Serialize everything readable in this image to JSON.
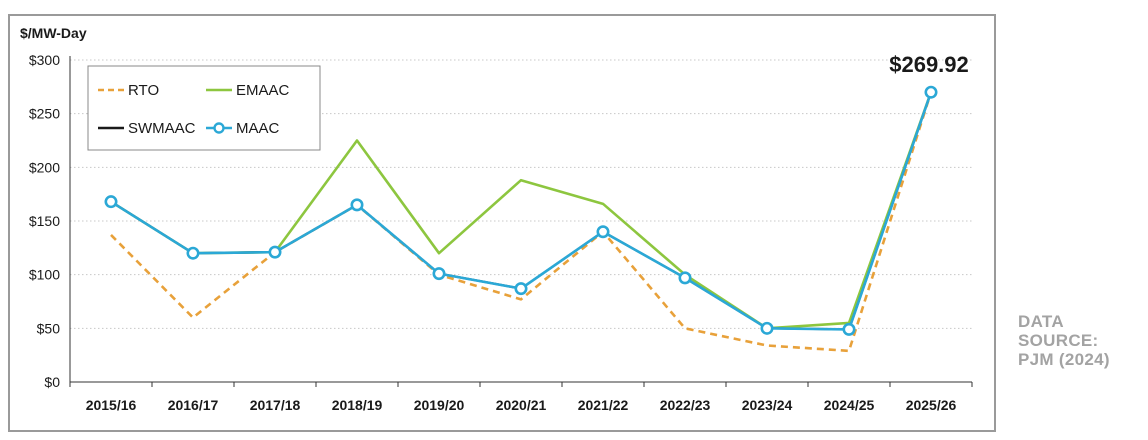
{
  "chart_data": {
    "type": "line",
    "ylabel": "$/MW-Day",
    "ylim": [
      0,
      300
    ],
    "yticks": [
      0,
      50,
      100,
      150,
      200,
      250,
      300
    ],
    "ytick_labels": [
      "$0",
      "$50",
      "$100",
      "$150",
      "$200",
      "$250",
      "$300"
    ],
    "categories": [
      "2015/16",
      "2016/17",
      "2017/18",
      "2018/19",
      "2019/20",
      "2020/21",
      "2021/22",
      "2022/23",
      "2023/24",
      "2024/25",
      "2025/26"
    ],
    "grid": "horizontal dotted",
    "legend_position": "top-left",
    "annotation": "$269.92",
    "series": [
      {
        "name": "RTO",
        "style": "dashed",
        "color": "#E8A13A",
        "values": [
          137,
          60,
          121,
          165,
          100,
          77,
          140,
          50,
          34,
          29,
          270
        ]
      },
      {
        "name": "EMAAC",
        "style": "solid",
        "color": "#8DC63F",
        "values": [
          168,
          120,
          121,
          225,
          120,
          188,
          166,
          100,
          50,
          55,
          270
        ]
      },
      {
        "name": "SWMAAC",
        "style": "solid",
        "color": "#1a1a1a",
        "values": [
          168,
          120,
          121,
          165,
          101,
          87,
          140,
          97,
          50,
          49,
          270
        ]
      },
      {
        "name": "MAAC",
        "style": "solid-markers",
        "color": "#2BA8D6",
        "values": [
          168,
          120,
          121,
          165,
          101,
          87,
          140,
          97,
          50,
          49,
          270
        ]
      }
    ]
  },
  "source_note": {
    "line1": "DATA",
    "line2": "SOURCE:",
    "line3": "PJM (2024)"
  }
}
